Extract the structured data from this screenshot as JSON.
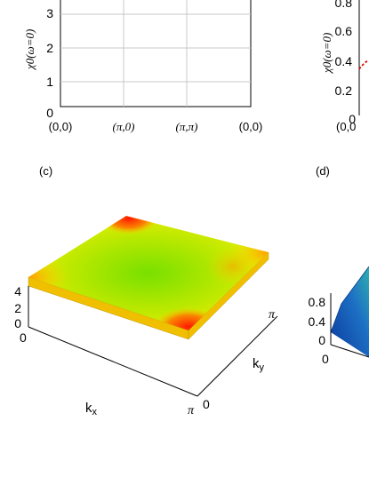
{
  "panel_a": {
    "ylabel": "χ0(ω=0)",
    "yticks": [
      "0",
      "1",
      "2",
      "3"
    ],
    "xticks": [
      "(0,0)",
      "(π,0)",
      "(π,π)",
      "(0,0)"
    ]
  },
  "panel_b": {
    "ylabel": "χ0(ω=0)",
    "yticks": [
      "0",
      "0.2",
      "0.4",
      "0.6",
      "0.8"
    ],
    "xtick_first": "(0,0"
  },
  "panel_c": {
    "label": "(c)",
    "zticks": [
      "0",
      "2",
      "4"
    ],
    "kx_label": "kx",
    "ky_label": "ky",
    "axis_pi": "π",
    "axis_zero": "0"
  },
  "panel_d": {
    "label": "(d)",
    "zticks": [
      "0",
      "0.4",
      "0.8"
    ],
    "axis_zero": "0"
  },
  "colors": {
    "surface_low": "#7be000",
    "surface_mid": "#e6f000",
    "surface_high": "#ff1a00",
    "curve_red": "#e00000",
    "grid": "#c8c8c8",
    "blue_surface": "#1d6fc4"
  }
}
